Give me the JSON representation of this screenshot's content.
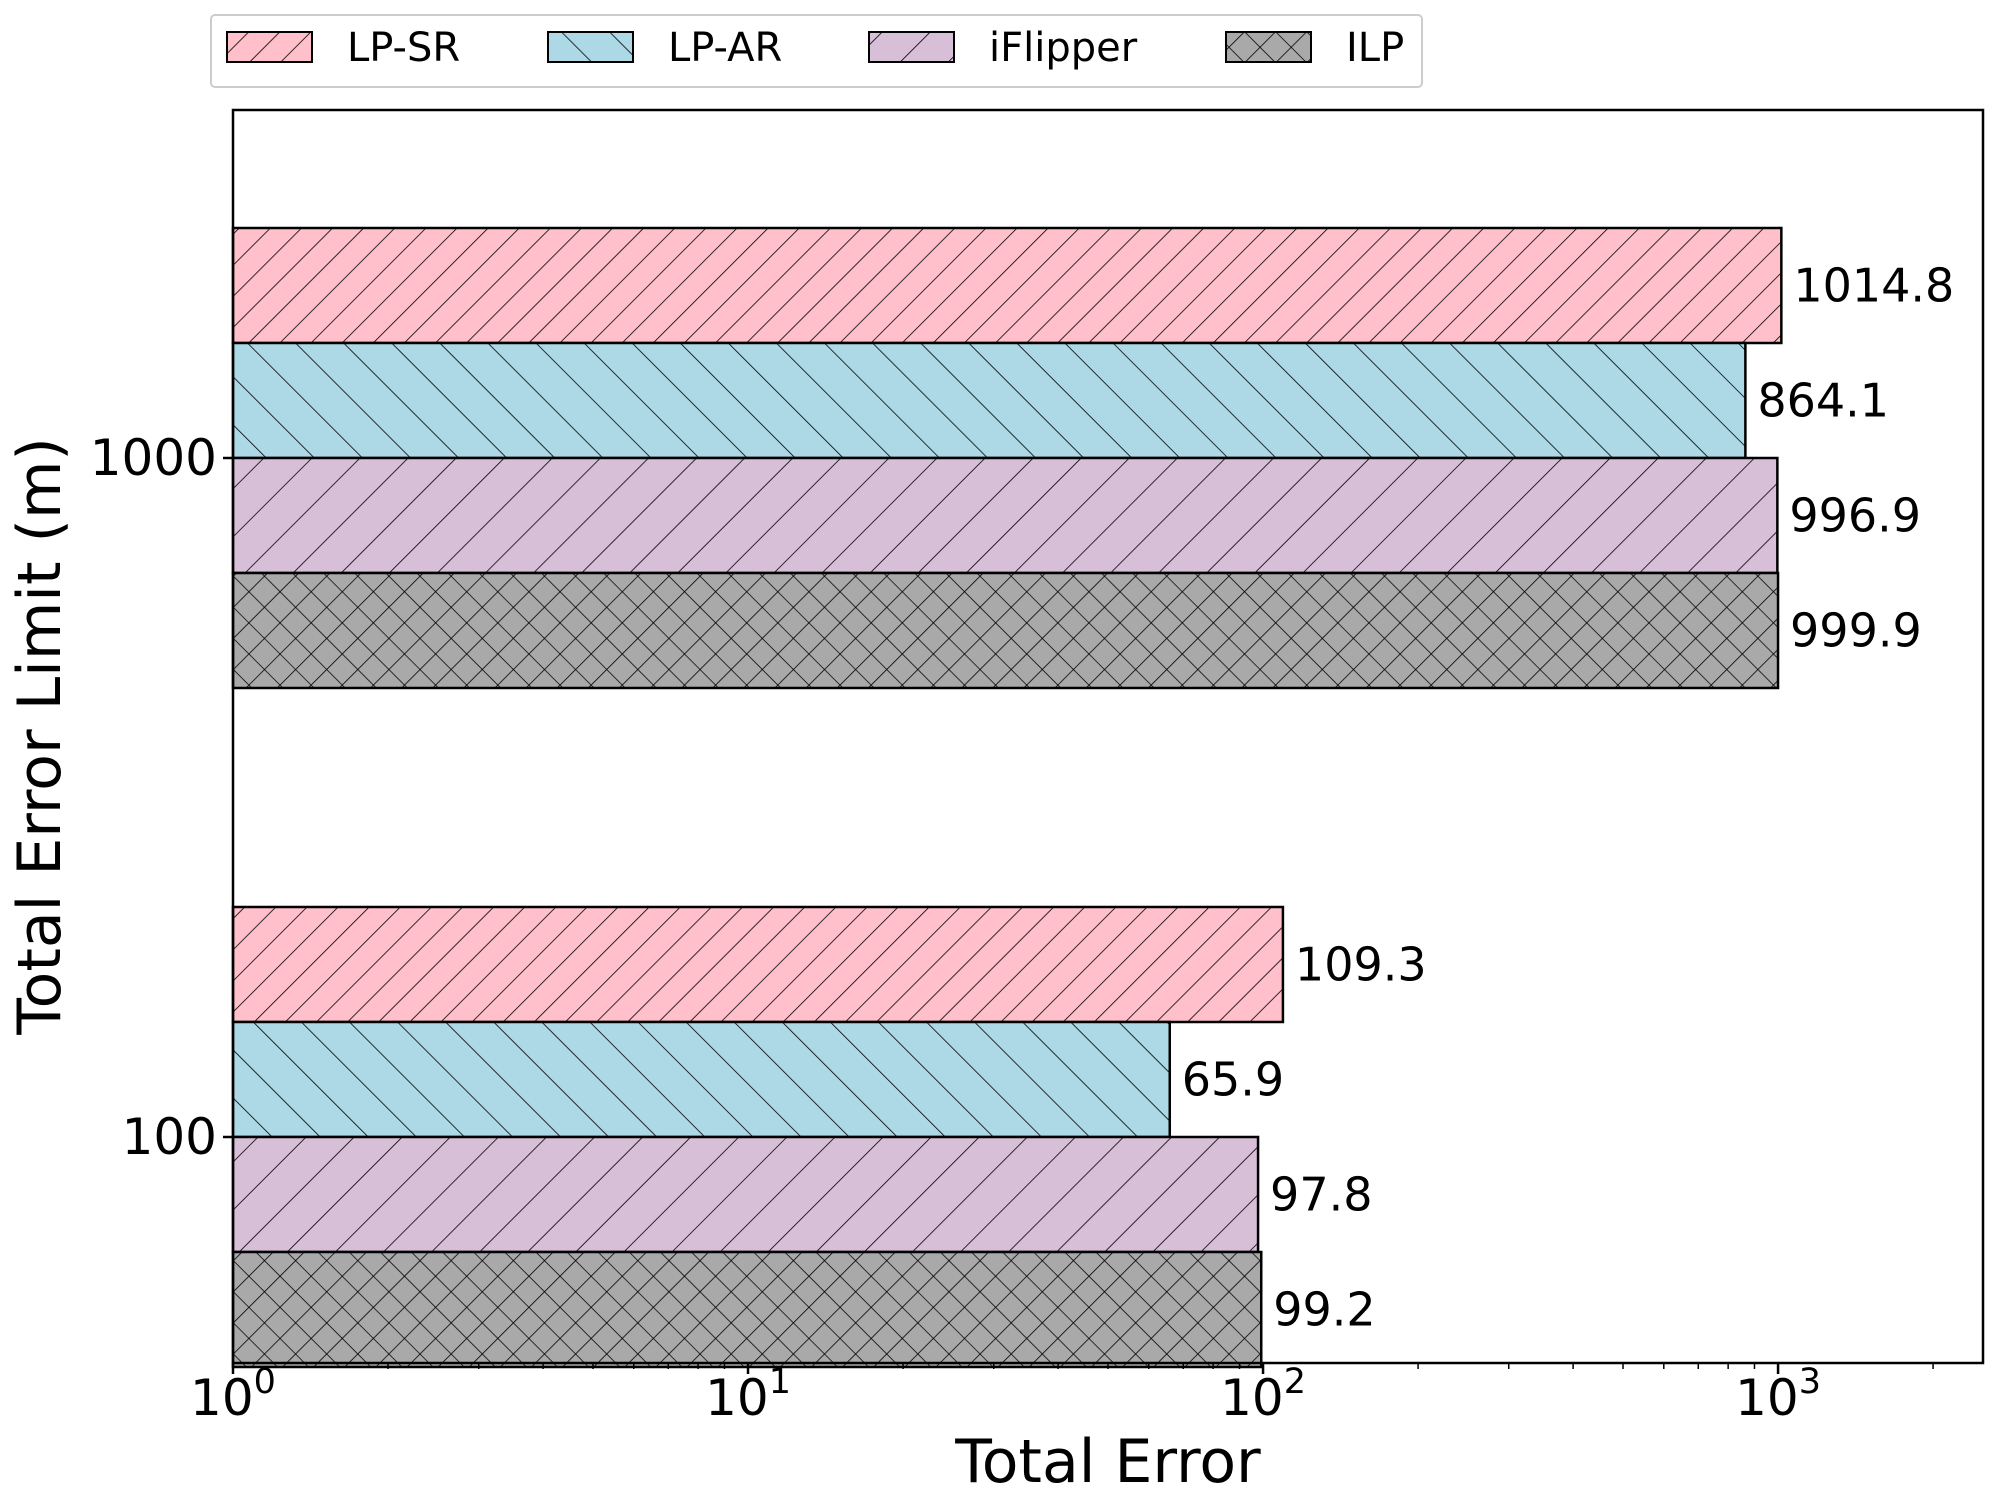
{
  "chart_data": {
    "type": "bar",
    "orientation": "horizontal",
    "xscale": "log",
    "xlabel": "Total Error",
    "ylabel": "Total Error Limit (m)",
    "xlim": [
      1,
      2500
    ],
    "x_ticks": [
      {
        "value": 1,
        "base": "10",
        "exp": "0"
      },
      {
        "value": 10,
        "base": "10",
        "exp": "1"
      },
      {
        "value": 100,
        "base": "10",
        "exp": "2"
      },
      {
        "value": 1000,
        "base": "10",
        "exp": "3"
      }
    ],
    "categories": [
      "1000",
      "100"
    ],
    "series": [
      {
        "name": "LP-SR",
        "color": "#FFC0CB",
        "hatch": "diag-right",
        "values": [
          1014.8,
          109.3
        ],
        "labels": [
          "1014.8",
          "109.3"
        ]
      },
      {
        "name": "LP-AR",
        "color": "#ADD8E6",
        "hatch": "diag-left",
        "values": [
          864.1,
          65.9
        ],
        "labels": [
          "864.1",
          "65.9"
        ]
      },
      {
        "name": "iFlipper",
        "color": "#D8BFD8",
        "hatch": "diag-right-sparse",
        "values": [
          996.9,
          97.8
        ],
        "labels": [
          "996.9",
          "97.8"
        ]
      },
      {
        "name": "ILP",
        "color": "#A9A9A9",
        "hatch": "cross",
        "values": [
          999.9,
          99.2
        ],
        "labels": [
          "999.9",
          "99.2"
        ]
      }
    ],
    "grid": false,
    "legend": {
      "position": "top-left"
    }
  }
}
